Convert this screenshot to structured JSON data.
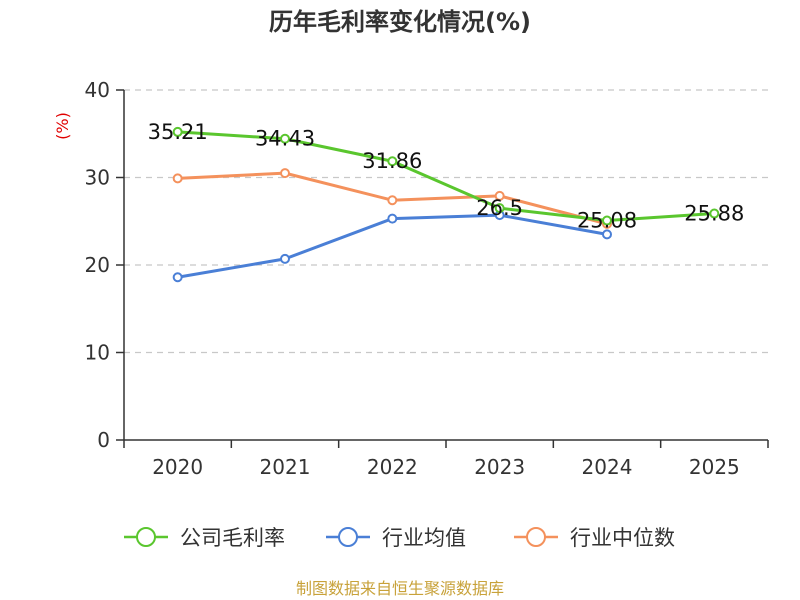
{
  "chart_data": {
    "type": "line",
    "title": "历年毛利率变化情况(%)",
    "ylabel": "(%)",
    "xlabel": "",
    "categories": [
      "2020",
      "2021",
      "2022",
      "2023",
      "2024",
      "2025"
    ],
    "ylim": [
      0,
      40
    ],
    "yticks": [
      0,
      10,
      20,
      30,
      40
    ],
    "grid": true,
    "legend_position": "bottom",
    "series": [
      {
        "name": "公司毛利率",
        "color": "#5ac62e",
        "values": [
          35.21,
          34.43,
          31.86,
          26.5,
          25.08,
          25.88
        ],
        "labels": [
          "35.21",
          "34.43",
          "31.86",
          "26.5",
          "25.08",
          "25.88"
        ]
      },
      {
        "name": "行业均值",
        "color": "#4a7fd6",
        "values": [
          18.6,
          20.7,
          25.3,
          25.7,
          23.5,
          null
        ]
      },
      {
        "name": "行业中位数",
        "color": "#f4915c",
        "values": [
          29.9,
          30.5,
          27.4,
          27.9,
          24.7,
          null
        ]
      }
    ],
    "source": "制图数据来自恒生聚源数据库"
  }
}
